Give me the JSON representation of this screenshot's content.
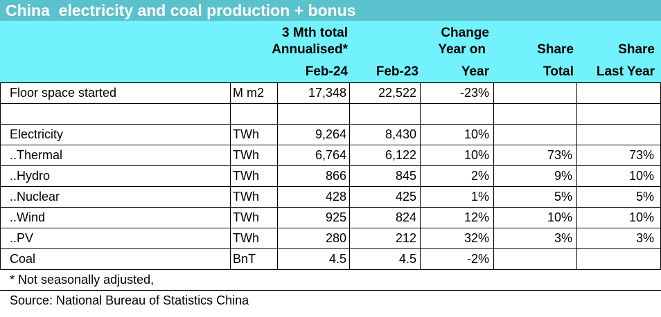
{
  "title": "China  electricity and coal production + bonus",
  "header": {
    "col1_line1": "3 Mth total",
    "col1_line2": "Annualised*",
    "col1_line3": "Feb-24",
    "col2_line3": "Feb-23",
    "col3_line1": "Change",
    "col3_line2": "Year on",
    "col3_line3": "Year",
    "col4_line2": "Share",
    "col4_line3": "Total",
    "col5_line2": "Share",
    "col5_line3": "Last Year"
  },
  "rows": [
    {
      "label": "Floor space started",
      "unit": "M m2",
      "feb24": "17,348",
      "feb23": "22,522",
      "yoy": "-23%",
      "share": "",
      "share_ly": ""
    },
    {
      "label": "",
      "unit": "",
      "feb24": "",
      "feb23": "",
      "yoy": "",
      "share": "",
      "share_ly": ""
    },
    {
      "label": "Electricity",
      "unit": "TWh",
      "feb24": "9,264",
      "feb23": "8,430",
      "yoy": "10%",
      "share": "",
      "share_ly": ""
    },
    {
      "label": "..Thermal",
      "unit": "TWh",
      "feb24": "6,764",
      "feb23": "6,122",
      "yoy": "10%",
      "share": "73%",
      "share_ly": "73%"
    },
    {
      "label": "..Hydro",
      "unit": "TWh",
      "feb24": "866",
      "feb23": "845",
      "yoy": "2%",
      "share": "9%",
      "share_ly": "10%"
    },
    {
      "label": "..Nuclear",
      "unit": "TWh",
      "feb24": "428",
      "feb23": "425",
      "yoy": "1%",
      "share": "5%",
      "share_ly": "5%"
    },
    {
      "label": "..Wind",
      "unit": "TWh",
      "feb24": "925",
      "feb23": "824",
      "yoy": "12%",
      "share": "10%",
      "share_ly": "10%"
    },
    {
      "label": "..PV",
      "unit": "TWh",
      "feb24": "280",
      "feb23": "212",
      "yoy": "32%",
      "share": "3%",
      "share_ly": "3%"
    },
    {
      "label": "Coal",
      "unit": "BnT",
      "feb24": "4.5",
      "feb23": "4.5",
      "yoy": "-2%",
      "share": "",
      "share_ly": ""
    }
  ],
  "notes": {
    "footnote": "* Not seasonally adjusted,",
    "source": "Source: National Bureau of Statistics China"
  },
  "colors": {
    "title_bg": "#5ac2cd",
    "header_bg": "#72f2fd"
  }
}
